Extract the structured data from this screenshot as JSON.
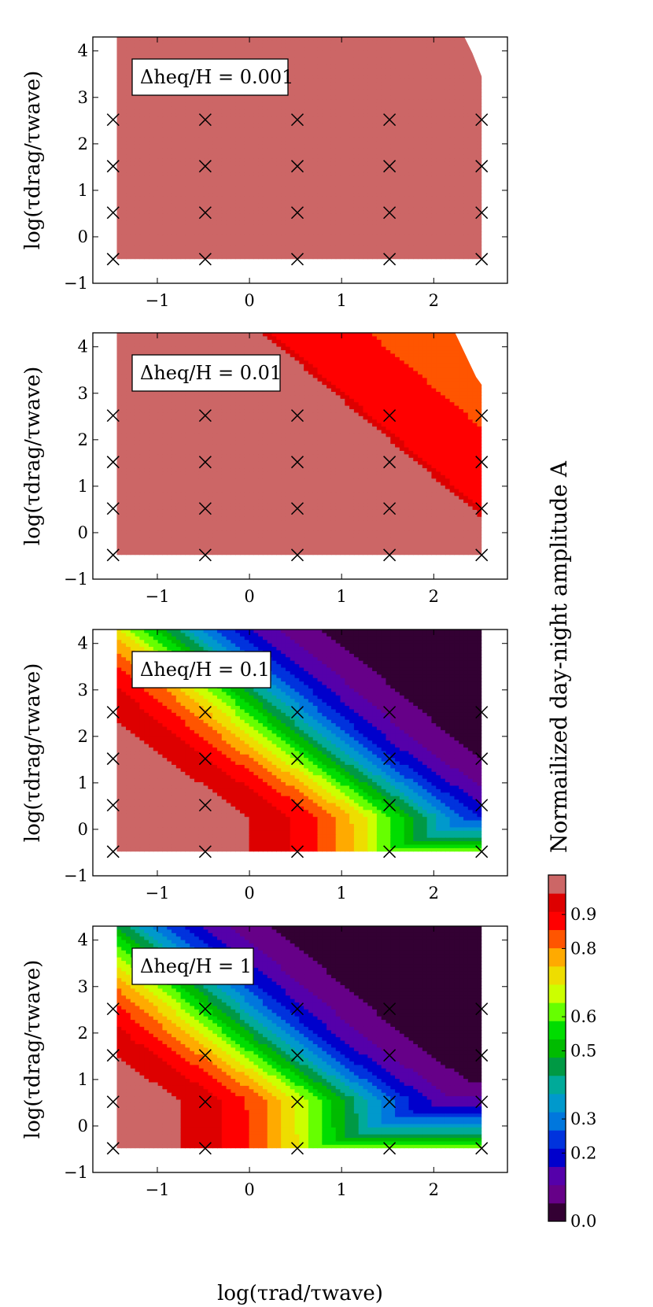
{
  "chart_data": {
    "type": "contour",
    "xlabel": "log(τrad/τwave)",
    "ylabel": "log(τdrag/τwave)",
    "xticks": [
      "−1",
      "0",
      "1",
      "2"
    ],
    "yticks": [
      "−1",
      "0",
      "1",
      "2",
      "3",
      "4"
    ],
    "xlim": [
      -1.7,
      2.8
    ],
    "ylim": [
      -1,
      4.3
    ],
    "grid": false,
    "sample_points": {
      "x": [
        -1.48,
        -0.48,
        0.52,
        1.52,
        2.52
      ],
      "y": [
        -0.48,
        0.52,
        1.52,
        2.52
      ]
    },
    "colorbar": {
      "title": "Normailized day-night amplitude A",
      "tick_labels": [
        "0.0",
        "0.2",
        "0.3",
        "0.5",
        "0.6",
        "0.8",
        "0.9"
      ],
      "tick_values": [
        0.0,
        0.2,
        0.3,
        0.5,
        0.6,
        0.8,
        0.9
      ],
      "levels": [
        0.0,
        0.067,
        0.133,
        0.2,
        0.267,
        0.333,
        0.4,
        0.467,
        0.533,
        0.6,
        0.667,
        0.733,
        0.8,
        0.867,
        0.933,
        1.0
      ],
      "colors": [
        "#330033",
        "#660088",
        "#5500aa",
        "#0000cc",
        "#0033dd",
        "#0077dd",
        "#0099cc",
        "#00aa99",
        "#009944",
        "#00bb00",
        "#00dd00",
        "#66ff00",
        "#ccff00",
        "#eedd00",
        "#ffaa00",
        "#ff5500",
        "#ff0000",
        "#dd0000",
        "#cc6666"
      ]
    },
    "panels": [
      {
        "label": "Δheq/H = 0.001",
        "dh_over_H": 0.001
      },
      {
        "label": "Δheq/H = 0.01",
        "dh_over_H": 0.01
      },
      {
        "label": "Δheq/H = 0.1",
        "dh_over_H": 0.1
      },
      {
        "label": "Δheq/H = 1",
        "dh_over_H": 1
      }
    ]
  }
}
